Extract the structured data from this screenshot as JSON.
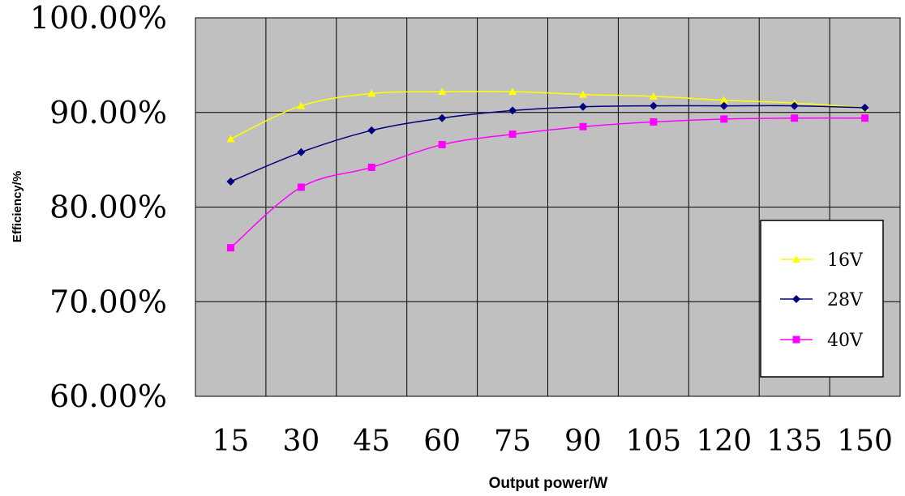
{
  "chart_data": {
    "type": "line",
    "xlabel": "Output power/W",
    "ylabel": "Efficiency/%",
    "categories": [
      "15",
      "30",
      "45",
      "60",
      "75",
      "90",
      "105",
      "120",
      "135",
      "150"
    ],
    "ylim": [
      0.6,
      1.0
    ],
    "yticks": [
      "100.00%",
      "90.00%",
      "80.00%",
      "70.00%",
      "60.00%"
    ],
    "grid": true,
    "plot_background": "#C0C0C0",
    "legend_position": "right",
    "series": [
      {
        "name": "16V",
        "color": "#FFFF00",
        "marker": "triangle",
        "values": [
          0.872,
          0.907,
          0.92,
          0.922,
          0.922,
          0.919,
          0.917,
          0.913,
          0.91,
          0.905
        ]
      },
      {
        "name": "28V",
        "color": "#000080",
        "marker": "diamond",
        "values": [
          0.827,
          0.858,
          0.881,
          0.894,
          0.902,
          0.906,
          0.907,
          0.907,
          0.907,
          0.905
        ]
      },
      {
        "name": "40V",
        "color": "#FF00FF",
        "marker": "square",
        "values": [
          0.757,
          0.821,
          0.842,
          0.866,
          0.877,
          0.885,
          0.89,
          0.893,
          0.894,
          0.894
        ]
      }
    ]
  }
}
